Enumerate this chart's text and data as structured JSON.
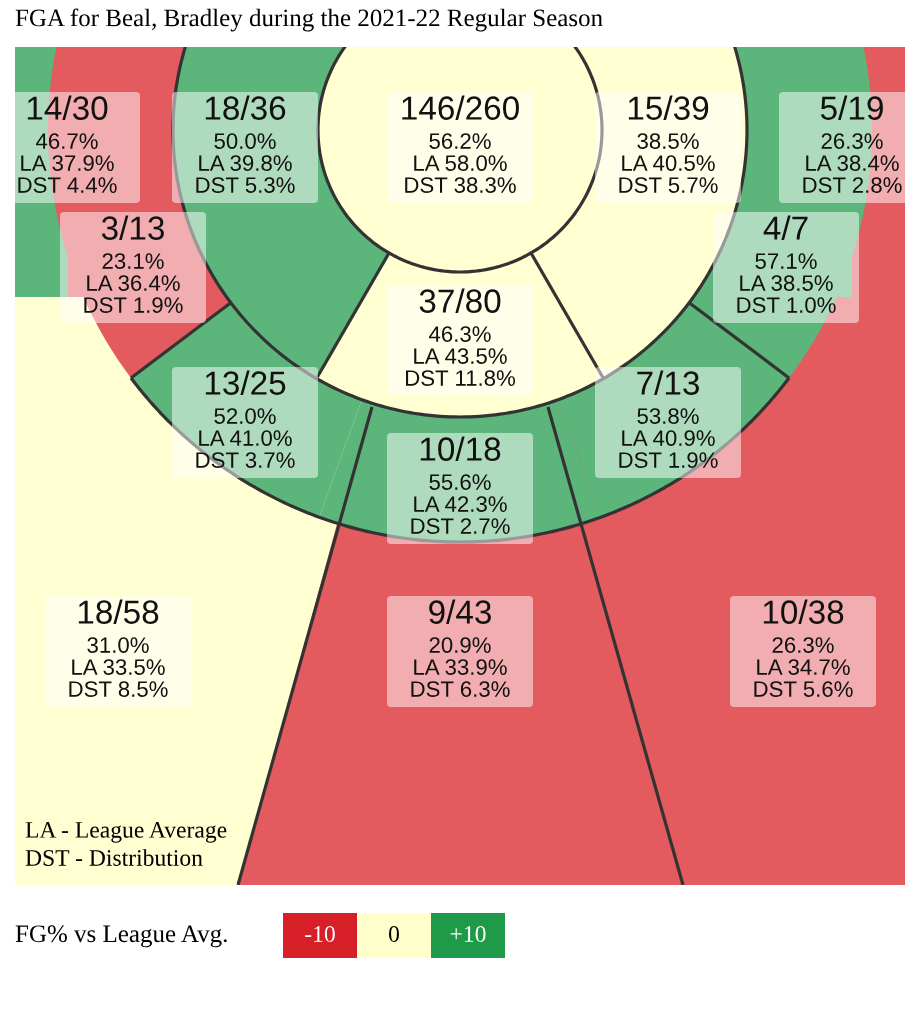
{
  "chart_data": {
    "type": "other",
    "title": "FGA for Beal, Bradley during the 2021-22 Regular Season",
    "categories": [
      null,
      null,
      null,
      null,
      null,
      null,
      null,
      null,
      null,
      null,
      null,
      null,
      null,
      null
    ],
    "values": [
      46.7,
      50.0,
      56.2,
      38.5,
      26.3,
      23.1,
      57.1,
      46.3,
      52.0,
      53.8,
      55.6,
      31.0,
      20.9,
      26.3
    ],
    "value_labels": [
      "14/30\n46.7%\nLA 37.9%\nDST 4.4%",
      "18/36\n50.0%\nLA 39.8%\nDST 5.3%",
      "146/260\n56.2%\nLA 58.0%\nDST 38.3%",
      "15/39\n38.5%\nLA 40.5%\nDST 5.7%",
      "5/19\n26.3%\nLA 38.4%\nDST 2.8%",
      "3/13\n23.1%\nLA 36.4%\nDST 1.9%",
      "4/7\n57.1%\nLA 38.5%\nDST 1.0%",
      "37/80\n46.3%\nLA 43.5%\nDST 11.8%",
      "13/25\n52.0%\nLA 41.0%\nDST 3.7%",
      "7/13\n53.8%\nLA 40.9%\nDST 1.9%",
      "10/18\n55.6%\nLA 42.3%\nDST 2.7%",
      "18/58\n31.0%\nLA 33.5%\nDST 8.5%",
      "9/43\n20.9%\nLA 33.9%\nDST 6.3%",
      "10/38\n26.3%\nLA 34.7%\nDST 5.6%"
    ],
    "colors": [
      "#5cb57a",
      "#5cb57a",
      "#ffffd2",
      "#ffffd2",
      "#e35b5e",
      "#e35b5e",
      "#5cb57a",
      "#ffffd2",
      "#5cb57a",
      "#5cb57a",
      "#5cb57a",
      "#ffffd2",
      "#e35b5e",
      "#e35b5e"
    ],
    "clabel": "FG% vs League Avg.",
    "annotations": [
      "LA - League Average",
      "DST - Distribution",
      "-10",
      "0",
      "+10"
    ]
  }
}
